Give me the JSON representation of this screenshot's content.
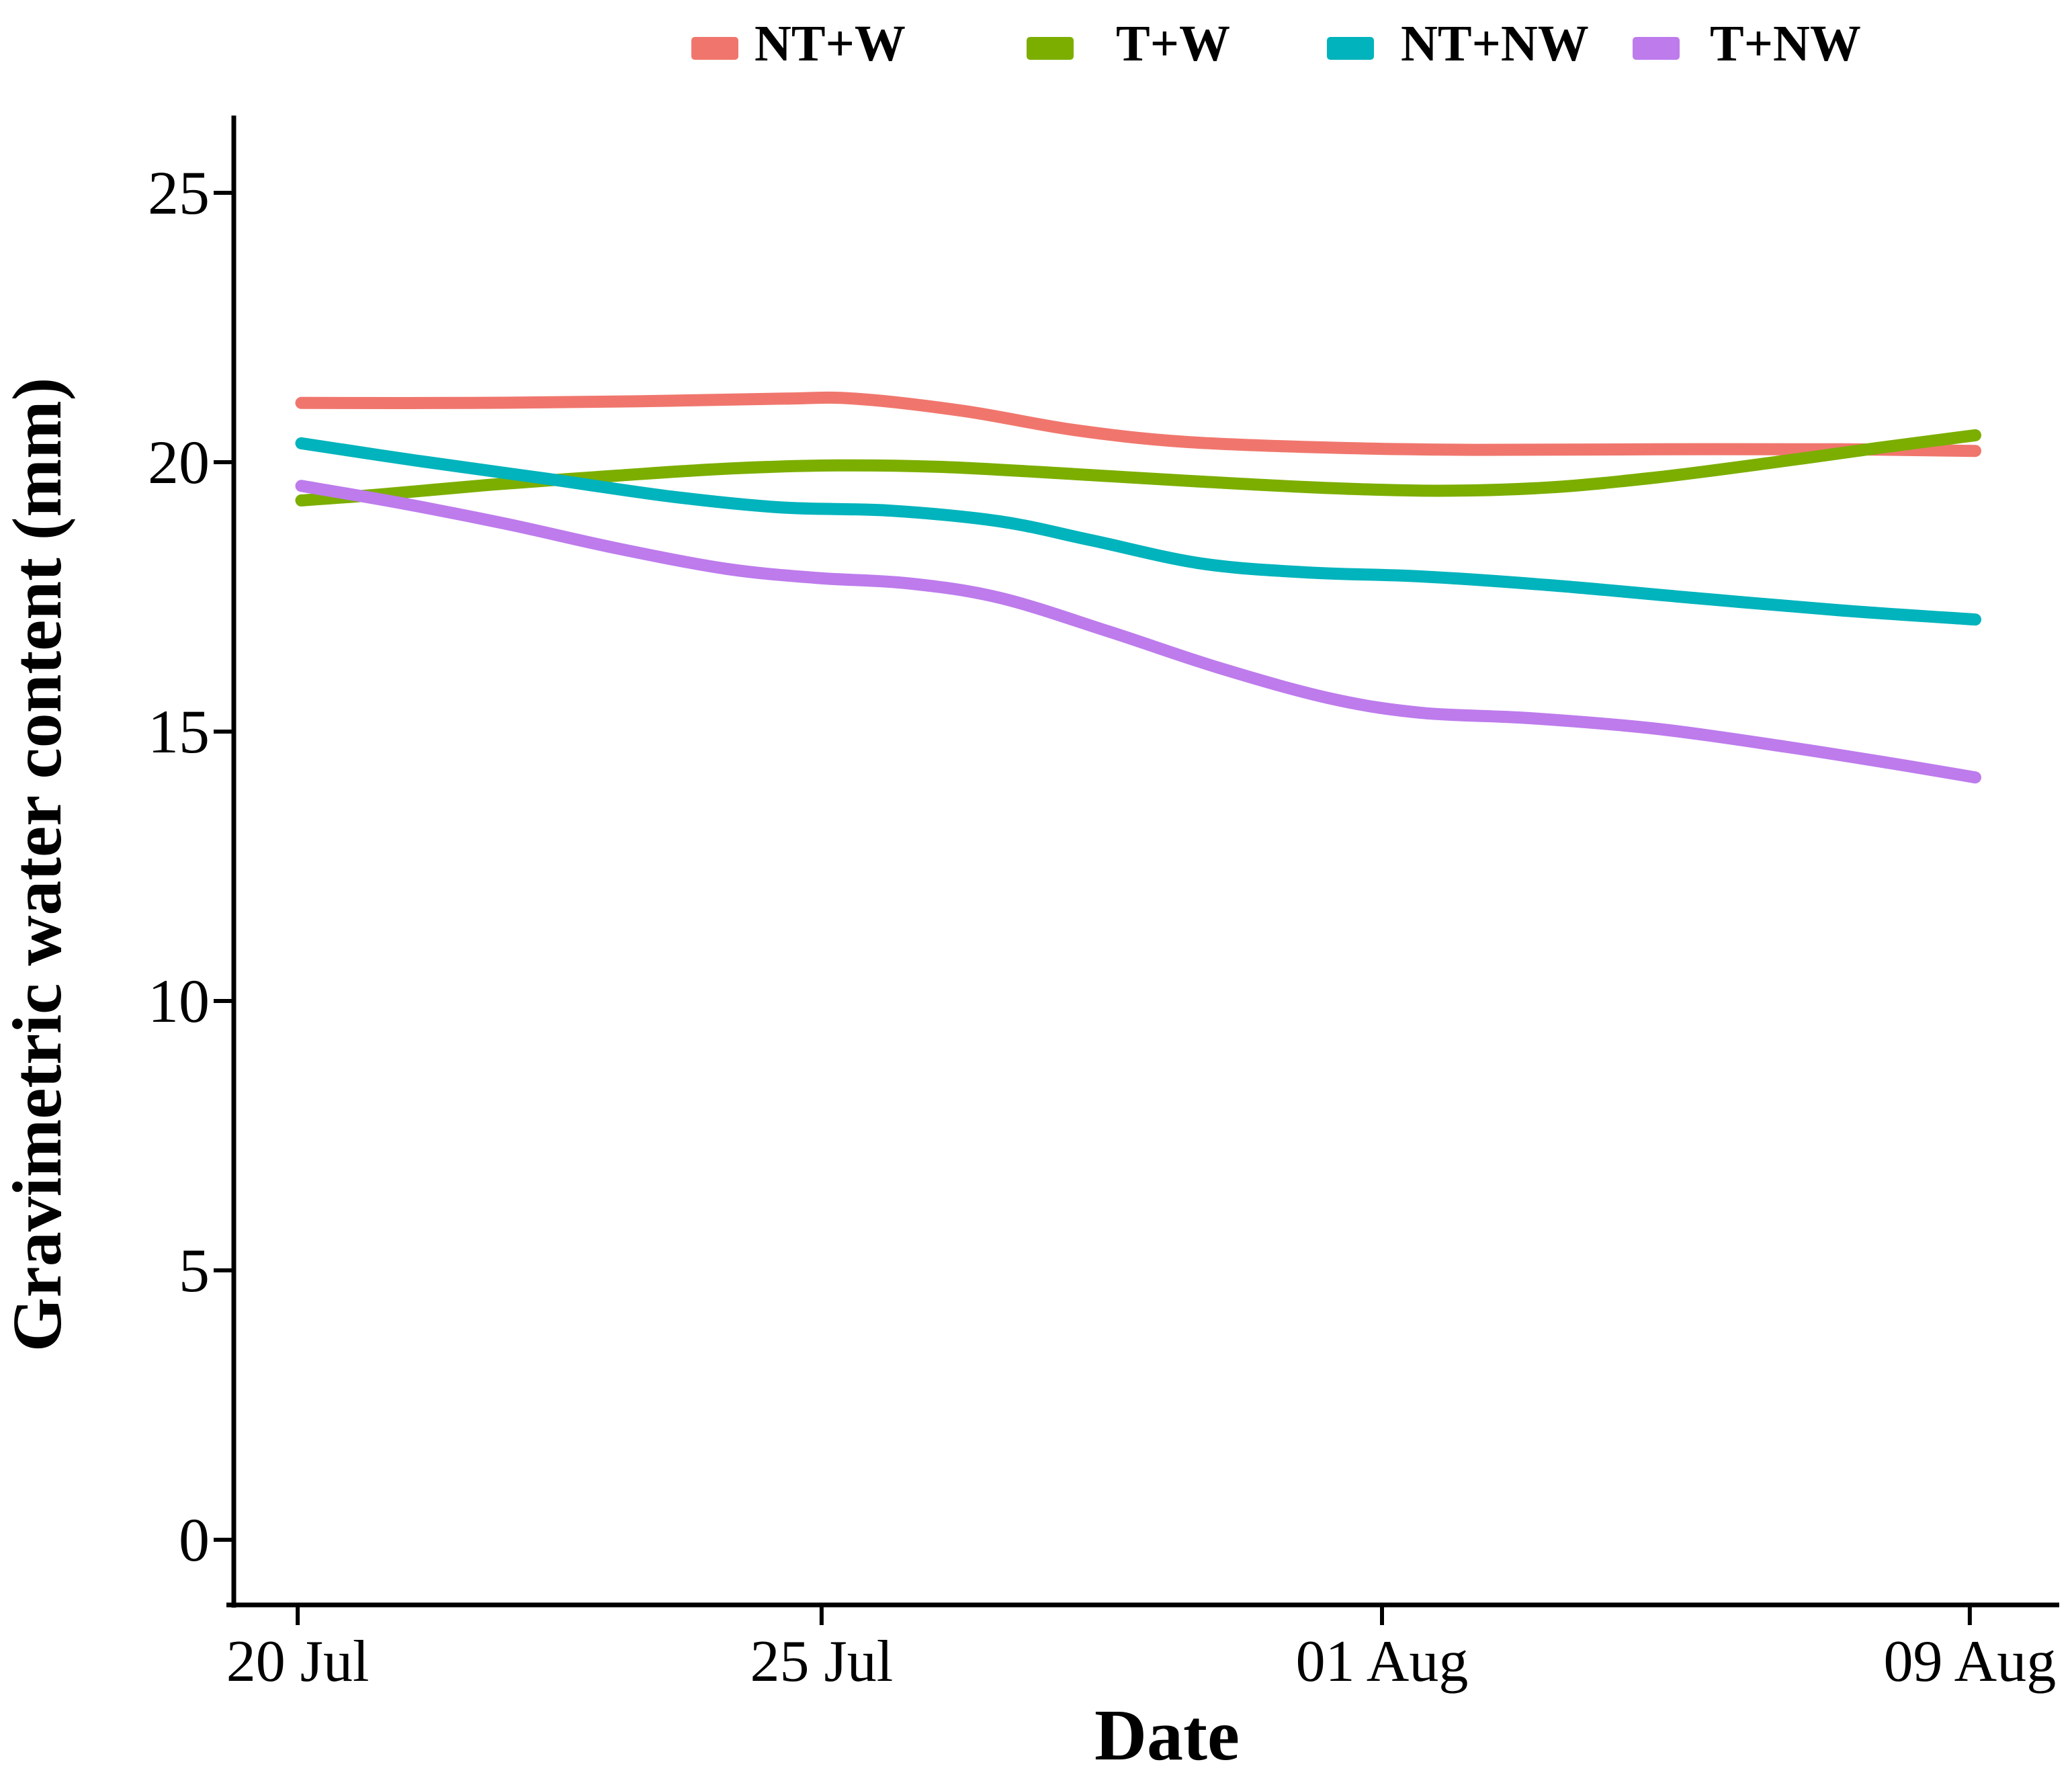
{
  "chart_data": {
    "type": "line",
    "title": "",
    "xlabel": "Date",
    "ylabel": "Gravimetric water content (mm)",
    "ylim": [
      0,
      25
    ],
    "grid": false,
    "legend_position": "top",
    "y_ticks": [
      0,
      5,
      10,
      15,
      20,
      25
    ],
    "x_ticks": [
      {
        "label": "20 Jul",
        "pos": 0.035
      },
      {
        "label": "25 Jul",
        "pos": 0.322
      },
      {
        "label": "01 Aug",
        "pos": 0.629
      },
      {
        "label": "09 Aug",
        "pos": 0.951
      }
    ],
    "series": [
      {
        "name": "NT+W",
        "color": "#F0766D",
        "points": [
          [
            0.037,
            21.1
          ],
          [
            0.13,
            21.1
          ],
          [
            0.22,
            21.13
          ],
          [
            0.3,
            21.18
          ],
          [
            0.34,
            21.18
          ],
          [
            0.4,
            20.95
          ],
          [
            0.46,
            20.6
          ],
          [
            0.52,
            20.38
          ],
          [
            0.6,
            20.27
          ],
          [
            0.68,
            20.23
          ],
          [
            0.78,
            20.24
          ],
          [
            0.88,
            20.24
          ],
          [
            0.954,
            20.21
          ]
        ]
      },
      {
        "name": "T+W",
        "color": "#7CAE00",
        "points": [
          [
            0.037,
            19.29
          ],
          [
            0.08,
            19.4
          ],
          [
            0.14,
            19.58
          ],
          [
            0.21,
            19.75
          ],
          [
            0.27,
            19.88
          ],
          [
            0.33,
            19.94
          ],
          [
            0.39,
            19.91
          ],
          [
            0.46,
            19.78
          ],
          [
            0.53,
            19.64
          ],
          [
            0.6,
            19.52
          ],
          [
            0.66,
            19.47
          ],
          [
            0.72,
            19.53
          ],
          [
            0.78,
            19.72
          ],
          [
            0.84,
            19.98
          ],
          [
            0.9,
            20.26
          ],
          [
            0.954,
            20.5
          ]
        ]
      },
      {
        "name": "NT+NW",
        "color": "#00B3BC",
        "points": [
          [
            0.037,
            20.35
          ],
          [
            0.1,
            20.03
          ],
          [
            0.17,
            19.7
          ],
          [
            0.24,
            19.36
          ],
          [
            0.3,
            19.16
          ],
          [
            0.36,
            19.1
          ],
          [
            0.42,
            18.9
          ],
          [
            0.47,
            18.55
          ],
          [
            0.53,
            18.12
          ],
          [
            0.59,
            17.95
          ],
          [
            0.65,
            17.88
          ],
          [
            0.72,
            17.72
          ],
          [
            0.8,
            17.48
          ],
          [
            0.88,
            17.25
          ],
          [
            0.954,
            17.08
          ]
        ]
      },
      {
        "name": "T+NW",
        "color": "#BD7BEC",
        "points": [
          [
            0.037,
            19.56
          ],
          [
            0.09,
            19.25
          ],
          [
            0.15,
            18.85
          ],
          [
            0.21,
            18.4
          ],
          [
            0.27,
            18.02
          ],
          [
            0.32,
            17.85
          ],
          [
            0.37,
            17.75
          ],
          [
            0.42,
            17.48
          ],
          [
            0.48,
            16.85
          ],
          [
            0.54,
            16.18
          ],
          [
            0.6,
            15.62
          ],
          [
            0.65,
            15.35
          ],
          [
            0.71,
            15.25
          ],
          [
            0.78,
            15.05
          ],
          [
            0.85,
            14.72
          ],
          [
            0.91,
            14.4
          ],
          [
            0.954,
            14.15
          ]
        ]
      }
    ],
    "values_at_ticks": {
      "dates": [
        "20 Jul",
        "25 Jul",
        "01 Aug",
        "09 Aug"
      ],
      "NT+W": [
        21.1,
        21.2,
        20.3,
        20.2
      ],
      "T+W": [
        19.3,
        19.9,
        19.5,
        20.5
      ],
      "NT+NW": [
        20.4,
        19.1,
        17.9,
        17.1
      ],
      "T+NW": [
        19.6,
        17.8,
        15.3,
        14.1
      ]
    }
  },
  "legend": {
    "items": [
      {
        "label": "NT+W",
        "color": "#F0766D"
      },
      {
        "label": "T+W",
        "color": "#7CAE00"
      },
      {
        "label": "NT+NW",
        "color": "#00B3BC"
      },
      {
        "label": "T+NW",
        "color": "#BD7BEC"
      }
    ]
  },
  "axis_color": "#000000"
}
